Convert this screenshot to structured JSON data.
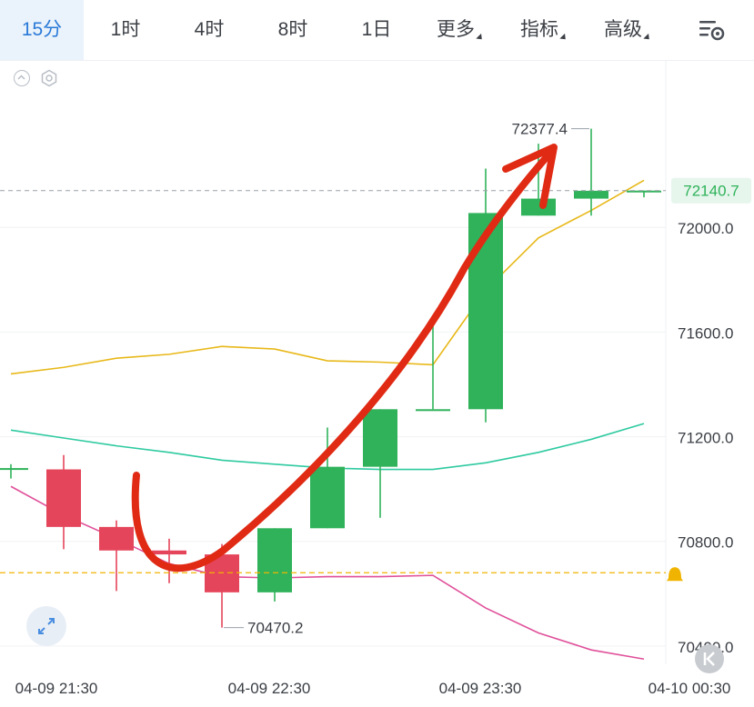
{
  "toolbar": {
    "tabs": [
      {
        "label": "15分",
        "active": true
      },
      {
        "label": "1时"
      },
      {
        "label": "4时"
      },
      {
        "label": "8时"
      },
      {
        "label": "1日"
      },
      {
        "label": "更多",
        "dropdown": true
      },
      {
        "label": "指标",
        "dropdown": true
      },
      {
        "label": "高级",
        "dropdown": true
      }
    ],
    "settings_icon": "chart-settings-icon"
  },
  "colors": {
    "up": "#2fb25a",
    "down": "#e5455a",
    "ma_yellow": "#e8b818",
    "ma_teal": "#2ecaa0",
    "ma_pink": "#e0509a",
    "arrow": "#e02a14",
    "alert_line": "#f0b400",
    "current_price_bg": "#e6f6ec",
    "current_price_text": "#2fb25a"
  },
  "chart_data": {
    "type": "candlestick",
    "interval": "15分",
    "y_ticks": [
      72000.0,
      71600.0,
      71200.0,
      70800.0,
      70400.0
    ],
    "y_tick_labels": [
      "72000.0",
      "71600.0",
      "71200.0",
      "70800.0",
      "70400.0"
    ],
    "x_tick_labels": [
      "04-09 21:30",
      "04-09 22:30",
      "04-09 23:30",
      "04-10 00:30"
    ],
    "ylim": [
      70330,
      72640
    ],
    "candles": [
      {
        "o": 71080,
        "c": 71080,
        "h": 71095,
        "l": 71040
      },
      {
        "o": 71075,
        "c": 70855,
        "h": 71130,
        "l": 70770
      },
      {
        "o": 70855,
        "c": 70765,
        "h": 70880,
        "l": 70610
      },
      {
        "o": 70765,
        "c": 70750,
        "h": 70810,
        "l": 70640
      },
      {
        "o": 70750,
        "c": 70605,
        "h": 70790,
        "l": 70470.2
      },
      {
        "o": 70605,
        "c": 70850,
        "h": 70850,
        "l": 70570
      },
      {
        "o": 70850,
        "c": 71085,
        "h": 71235,
        "l": 70850
      },
      {
        "o": 71085,
        "c": 71305,
        "h": 71305,
        "l": 70890
      },
      {
        "o": 71305,
        "c": 71305,
        "h": 71640,
        "l": 71305
      },
      {
        "o": 71305,
        "c": 72055,
        "h": 72225,
        "l": 71255
      },
      {
        "o": 72045,
        "c": 72110,
        "h": 72320,
        "l": 72045
      },
      {
        "o": 72110,
        "c": 72140,
        "h": 72377.4,
        "l": 72045
      },
      {
        "o": 72140,
        "c": 72140.7,
        "h": 72140.7,
        "l": 72115
      }
    ],
    "ma_series": [
      {
        "color": "yellow",
        "values": [
          71440,
          71465,
          71500,
          71515,
          71545,
          71535,
          71490,
          71485,
          71475,
          71760,
          71960,
          72065,
          72180
        ]
      },
      {
        "color": "teal",
        "values": [
          71225,
          71195,
          71165,
          71140,
          71110,
          71095,
          71080,
          71075,
          71075,
          71100,
          71140,
          71190,
          71250
        ]
      },
      {
        "color": "pink",
        "values": [
          71010,
          70900,
          70810,
          70715,
          70665,
          70660,
          70665,
          70665,
          70670,
          70545,
          70450,
          70385,
          70350
        ]
      }
    ],
    "current_price": 72140.7,
    "current_price_label": "72140.7",
    "alert_price": 70680,
    "max_label": "72377.4",
    "min_label": "70470.2"
  }
}
